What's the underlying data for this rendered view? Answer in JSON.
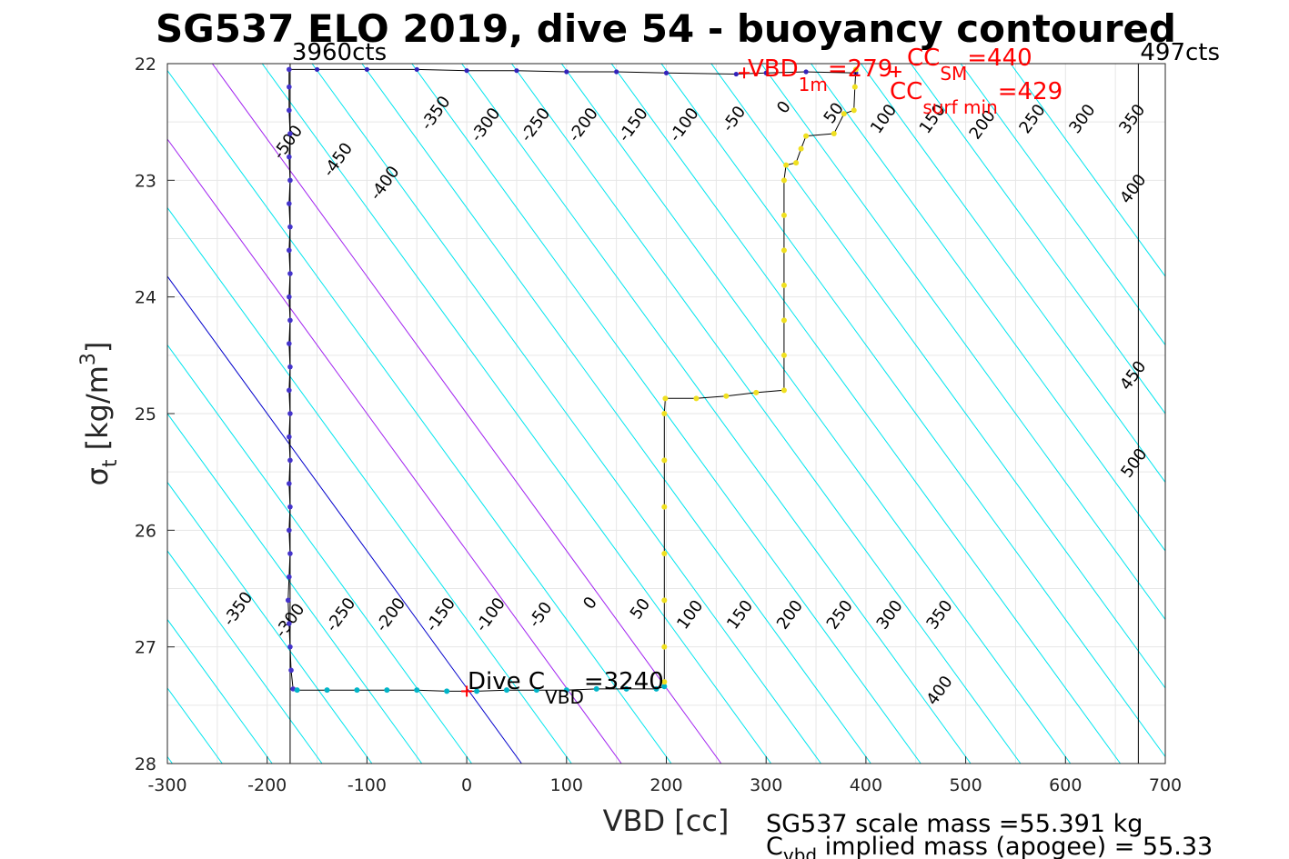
{
  "chart_data": {
    "type": "scatter",
    "title": "SG537 ELO 2019, dive 54 - buoyancy contoured",
    "xlabel": "VBD [cc]",
    "ylabel": "σ",
    "ylabel_sub": "t",
    "ylabel_unit": " [kg/m",
    "ylabel_sup": "3",
    "ylabel_end": "]",
    "xlim": [
      -300,
      700
    ],
    "ylim": [
      22,
      28
    ],
    "y_reversed": true,
    "grid": true,
    "xticks": [
      "-300",
      "-200",
      "-100",
      "0",
      "100",
      "200",
      "300",
      "400",
      "500",
      "600",
      "700"
    ],
    "yticks": [
      "22",
      "23",
      "24",
      "25",
      "26",
      "27",
      "28"
    ],
    "contour_slope_cc_per_sigma": 85,
    "contour_levels": [
      -500,
      -450,
      -400,
      -350,
      -300,
      -250,
      -200,
      -150,
      -100,
      -50,
      0,
      50,
      100,
      150,
      200,
      250,
      300,
      350,
      400,
      450,
      500
    ],
    "contour_colors": {
      "default": "#00e5ee",
      "zero": "#0000cc",
      "special": "#a020f0"
    },
    "special_levels": [
      100,
      200
    ],
    "contour_labels_top": [
      {
        "text": "-500",
        "x": -175,
        "y": 22.7
      },
      {
        "text": "-450",
        "x": -125,
        "y": 22.85
      },
      {
        "text": "-400",
        "x": -78,
        "y": 23.05
      },
      {
        "text": "-350",
        "x": -27,
        "y": 22.45
      },
      {
        "text": "-300",
        "x": 23,
        "y": 22.55
      },
      {
        "text": "-250",
        "x": 73,
        "y": 22.55
      },
      {
        "text": "-200",
        "x": 121,
        "y": 22.55
      },
      {
        "text": "-150",
        "x": 171,
        "y": 22.55
      },
      {
        "text": "-100",
        "x": 222,
        "y": 22.55
      },
      {
        "text": "-50",
        "x": 272,
        "y": 22.5
      },
      {
        "text": "0",
        "x": 322,
        "y": 22.4
      },
      {
        "text": "50",
        "x": 372,
        "y": 22.45
      },
      {
        "text": "100",
        "x": 422,
        "y": 22.5
      },
      {
        "text": "150",
        "x": 471,
        "y": 22.5
      },
      {
        "text": "200",
        "x": 521,
        "y": 22.55
      },
      {
        "text": "250",
        "x": 571,
        "y": 22.5
      },
      {
        "text": "300",
        "x": 621,
        "y": 22.5
      },
      {
        "text": "350",
        "x": 671,
        "y": 22.5
      },
      {
        "text": "400",
        "x": 672,
        "y": 23.1
      },
      {
        "text": "450",
        "x": 672,
        "y": 24.7
      },
      {
        "text": "500",
        "x": 673,
        "y": 25.45
      }
    ],
    "contour_labels_bottom": [
      {
        "text": "-350",
        "x": -225,
        "y": 26.7
      },
      {
        "text": "-300",
        "x": -173,
        "y": 26.8
      },
      {
        "text": "-250",
        "x": -122,
        "y": 26.75
      },
      {
        "text": "-200",
        "x": -72,
        "y": 26.75
      },
      {
        "text": "-150",
        "x": -22,
        "y": 26.75
      },
      {
        "text": "-100",
        "x": 28,
        "y": 26.75
      },
      {
        "text": "-50",
        "x": 78,
        "y": 26.75
      },
      {
        "text": "0",
        "x": 128,
        "y": 26.65
      },
      {
        "text": "50",
        "x": 178,
        "y": 26.7
      },
      {
        "text": "100",
        "x": 228,
        "y": 26.75
      },
      {
        "text": "150",
        "x": 278,
        "y": 26.75
      },
      {
        "text": "200",
        "x": 328,
        "y": 26.75
      },
      {
        "text": "250",
        "x": 378,
        "y": 26.75
      },
      {
        "text": "300",
        "x": 428,
        "y": 26.75
      },
      {
        "text": "350",
        "x": 478,
        "y": 26.75
      },
      {
        "text": "400",
        "x": 478,
        "y": 27.4
      }
    ],
    "vertical_lines": [
      {
        "x": -177,
        "label": "3960cts"
      },
      {
        "x": 673,
        "label": "497cts"
      }
    ],
    "dive_profile": {
      "color": "#4433cc",
      "points": [
        [
          -178,
          22.05
        ],
        [
          -178,
          22.2
        ],
        [
          -178,
          22.4
        ],
        [
          -177,
          22.6
        ],
        [
          -178,
          22.8
        ],
        [
          -177,
          23.0
        ],
        [
          -178,
          23.2
        ],
        [
          -177,
          23.4
        ],
        [
          -178,
          23.6
        ],
        [
          -177,
          23.8
        ],
        [
          -178,
          24.0
        ],
        [
          -177,
          24.2
        ],
        [
          -178,
          24.4
        ],
        [
          -177,
          24.6
        ],
        [
          -178,
          24.8
        ],
        [
          -177,
          25.0
        ],
        [
          -178,
          25.2
        ],
        [
          -177,
          25.4
        ],
        [
          -178,
          25.6
        ],
        [
          -177,
          25.8
        ],
        [
          -178,
          26.0
        ],
        [
          -177,
          26.2
        ],
        [
          -178,
          26.4
        ],
        [
          -179,
          26.6
        ],
        [
          -178,
          26.8
        ],
        [
          -177,
          27.0
        ],
        [
          -176,
          27.2
        ],
        [
          -174,
          27.36
        ]
      ]
    },
    "bottom_track": {
      "color": "#00b5c8",
      "points": [
        [
          -170,
          27.37
        ],
        [
          -140,
          27.37
        ],
        [
          -110,
          27.37
        ],
        [
          -80,
          27.37
        ],
        [
          -50,
          27.37
        ],
        [
          -20,
          27.38
        ],
        [
          10,
          27.38
        ],
        [
          40,
          27.37
        ],
        [
          70,
          27.37
        ],
        [
          100,
          27.37
        ],
        [
          130,
          27.36
        ],
        [
          160,
          27.36
        ],
        [
          190,
          27.36
        ],
        [
          198,
          27.34
        ]
      ]
    },
    "climb_profile": {
      "color": "#f0e020",
      "points": [
        [
          198,
          27.3
        ],
        [
          198,
          27.0
        ],
        [
          198,
          26.6
        ],
        [
          198,
          26.2
        ],
        [
          198,
          25.8
        ],
        [
          198,
          25.4
        ],
        [
          198,
          25.0
        ],
        [
          199,
          24.87
        ],
        [
          230,
          24.87
        ],
        [
          260,
          24.85
        ],
        [
          290,
          24.82
        ],
        [
          318,
          24.8
        ],
        [
          318,
          24.5
        ],
        [
          318,
          24.2
        ],
        [
          318,
          23.9
        ],
        [
          318,
          23.6
        ],
        [
          318,
          23.3
        ],
        [
          318,
          23.0
        ],
        [
          320,
          22.87
        ],
        [
          330,
          22.85
        ],
        [
          335,
          22.73
        ],
        [
          340,
          22.62
        ],
        [
          368,
          22.6
        ],
        [
          378,
          22.43
        ],
        [
          388,
          22.4
        ],
        [
          389,
          22.2
        ],
        [
          390,
          22.05
        ]
      ]
    },
    "surface_track": {
      "color": "#3322bb",
      "points": [
        [
          -178,
          22.05
        ],
        [
          -150,
          22.05
        ],
        [
          -100,
          22.05
        ],
        [
          -50,
          22.05
        ],
        [
          0,
          22.06
        ],
        [
          50,
          22.06
        ],
        [
          100,
          22.07
        ],
        [
          150,
          22.07
        ],
        [
          200,
          22.08
        ],
        [
          270,
          22.09
        ],
        [
          300,
          22.08
        ],
        [
          340,
          22.07
        ],
        [
          390,
          22.08
        ]
      ]
    },
    "markers": [
      {
        "x": 0,
        "y": 27.38,
        "color": "#ff0000"
      },
      {
        "x": 278,
        "y": 22.08,
        "color": "#ff0000"
      },
      {
        "x": 430,
        "y": 22.07,
        "color": "#ff0000"
      }
    ],
    "annotations": {
      "vbd1m": {
        "pre": "VBD",
        "sub": "1m",
        "post": "=279"
      },
      "ccsm": {
        "pre": "CC",
        "sub": "SM",
        "post": "=440"
      },
      "ccsurf": {
        "pre": "CC",
        "sub": "surf min",
        "post": "=429"
      },
      "dive": {
        "pre": "Dive C",
        "sub": "VBD",
        "post": "=3240"
      }
    },
    "footer": {
      "line1": "SG537 scale mass =55.391 kg",
      "line2_pre": "C",
      "line2_sub": "vbd",
      "line2_post": " implied mass (apogee) = 55.33"
    }
  }
}
